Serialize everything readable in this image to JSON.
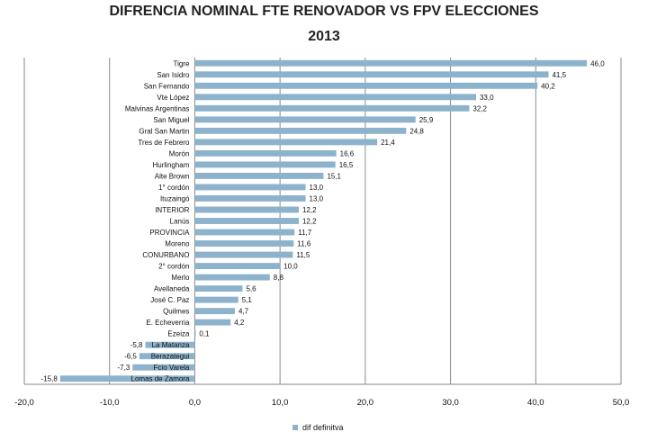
{
  "chart_data": {
    "type": "bar",
    "orientation": "horizontal",
    "title_line1": "DIFRENCIA NOMINAL FTE RENOVADOR VS FPV ELECCIONES",
    "title_line2": "2013",
    "xlim": [
      -20,
      50
    ],
    "xticks": [
      "-20,0",
      "-10,0",
      "0,0",
      "10,0",
      "20,0",
      "30,0",
      "40,0",
      "50,0"
    ],
    "grid": "vertical",
    "legend_position": "bottom",
    "bar_color": "#8db3cc",
    "series": [
      {
        "name": "dif definitva",
        "categories": [
          "Tigre",
          "San Isidro",
          "San Fernando",
          "Vte López",
          "Malvinas Argentinas",
          "San Miguel",
          "Gral San Martin",
          "Tres de Febrero",
          "Morón",
          "Hurlingham",
          "Alte Brown",
          "1° cordón",
          "Ituzaingó",
          "INTERIOR",
          "Lanús",
          "PROVINCIA",
          "Moreno",
          "CONURBANO",
          "2° cordón",
          "Merlo",
          "Avellaneda",
          "José C. Paz",
          "Quilmes",
          "E. Echeverria",
          "Ezeiza",
          "La Matanza",
          "Berazategui",
          "Fcio Varela",
          "Lomas de Zamora"
        ],
        "values": [
          46.0,
          41.5,
          40.2,
          33.0,
          32.2,
          25.9,
          24.8,
          21.4,
          16.6,
          16.5,
          15.1,
          13.0,
          13.0,
          12.2,
          12.2,
          11.7,
          11.6,
          11.5,
          10.0,
          8.8,
          5.6,
          5.1,
          4.7,
          4.2,
          0.1,
          -5.8,
          -6.5,
          -7.3,
          -15.8
        ],
        "labels": [
          "46,0",
          "41,5",
          "40,2",
          "33,0",
          "32,2",
          "25,9",
          "24,8",
          "21,4",
          "16,6",
          "16,5",
          "15,1",
          "13,0",
          "13,0",
          "12,2",
          "12,2",
          "11,7",
          "11,6",
          "11,5",
          "10,0",
          "8,8",
          "5,6",
          "5,1",
          "4,7",
          "4,2",
          "0,1",
          "-5,8",
          "-6,5",
          "-7,3",
          "-15,8"
        ]
      }
    ]
  }
}
